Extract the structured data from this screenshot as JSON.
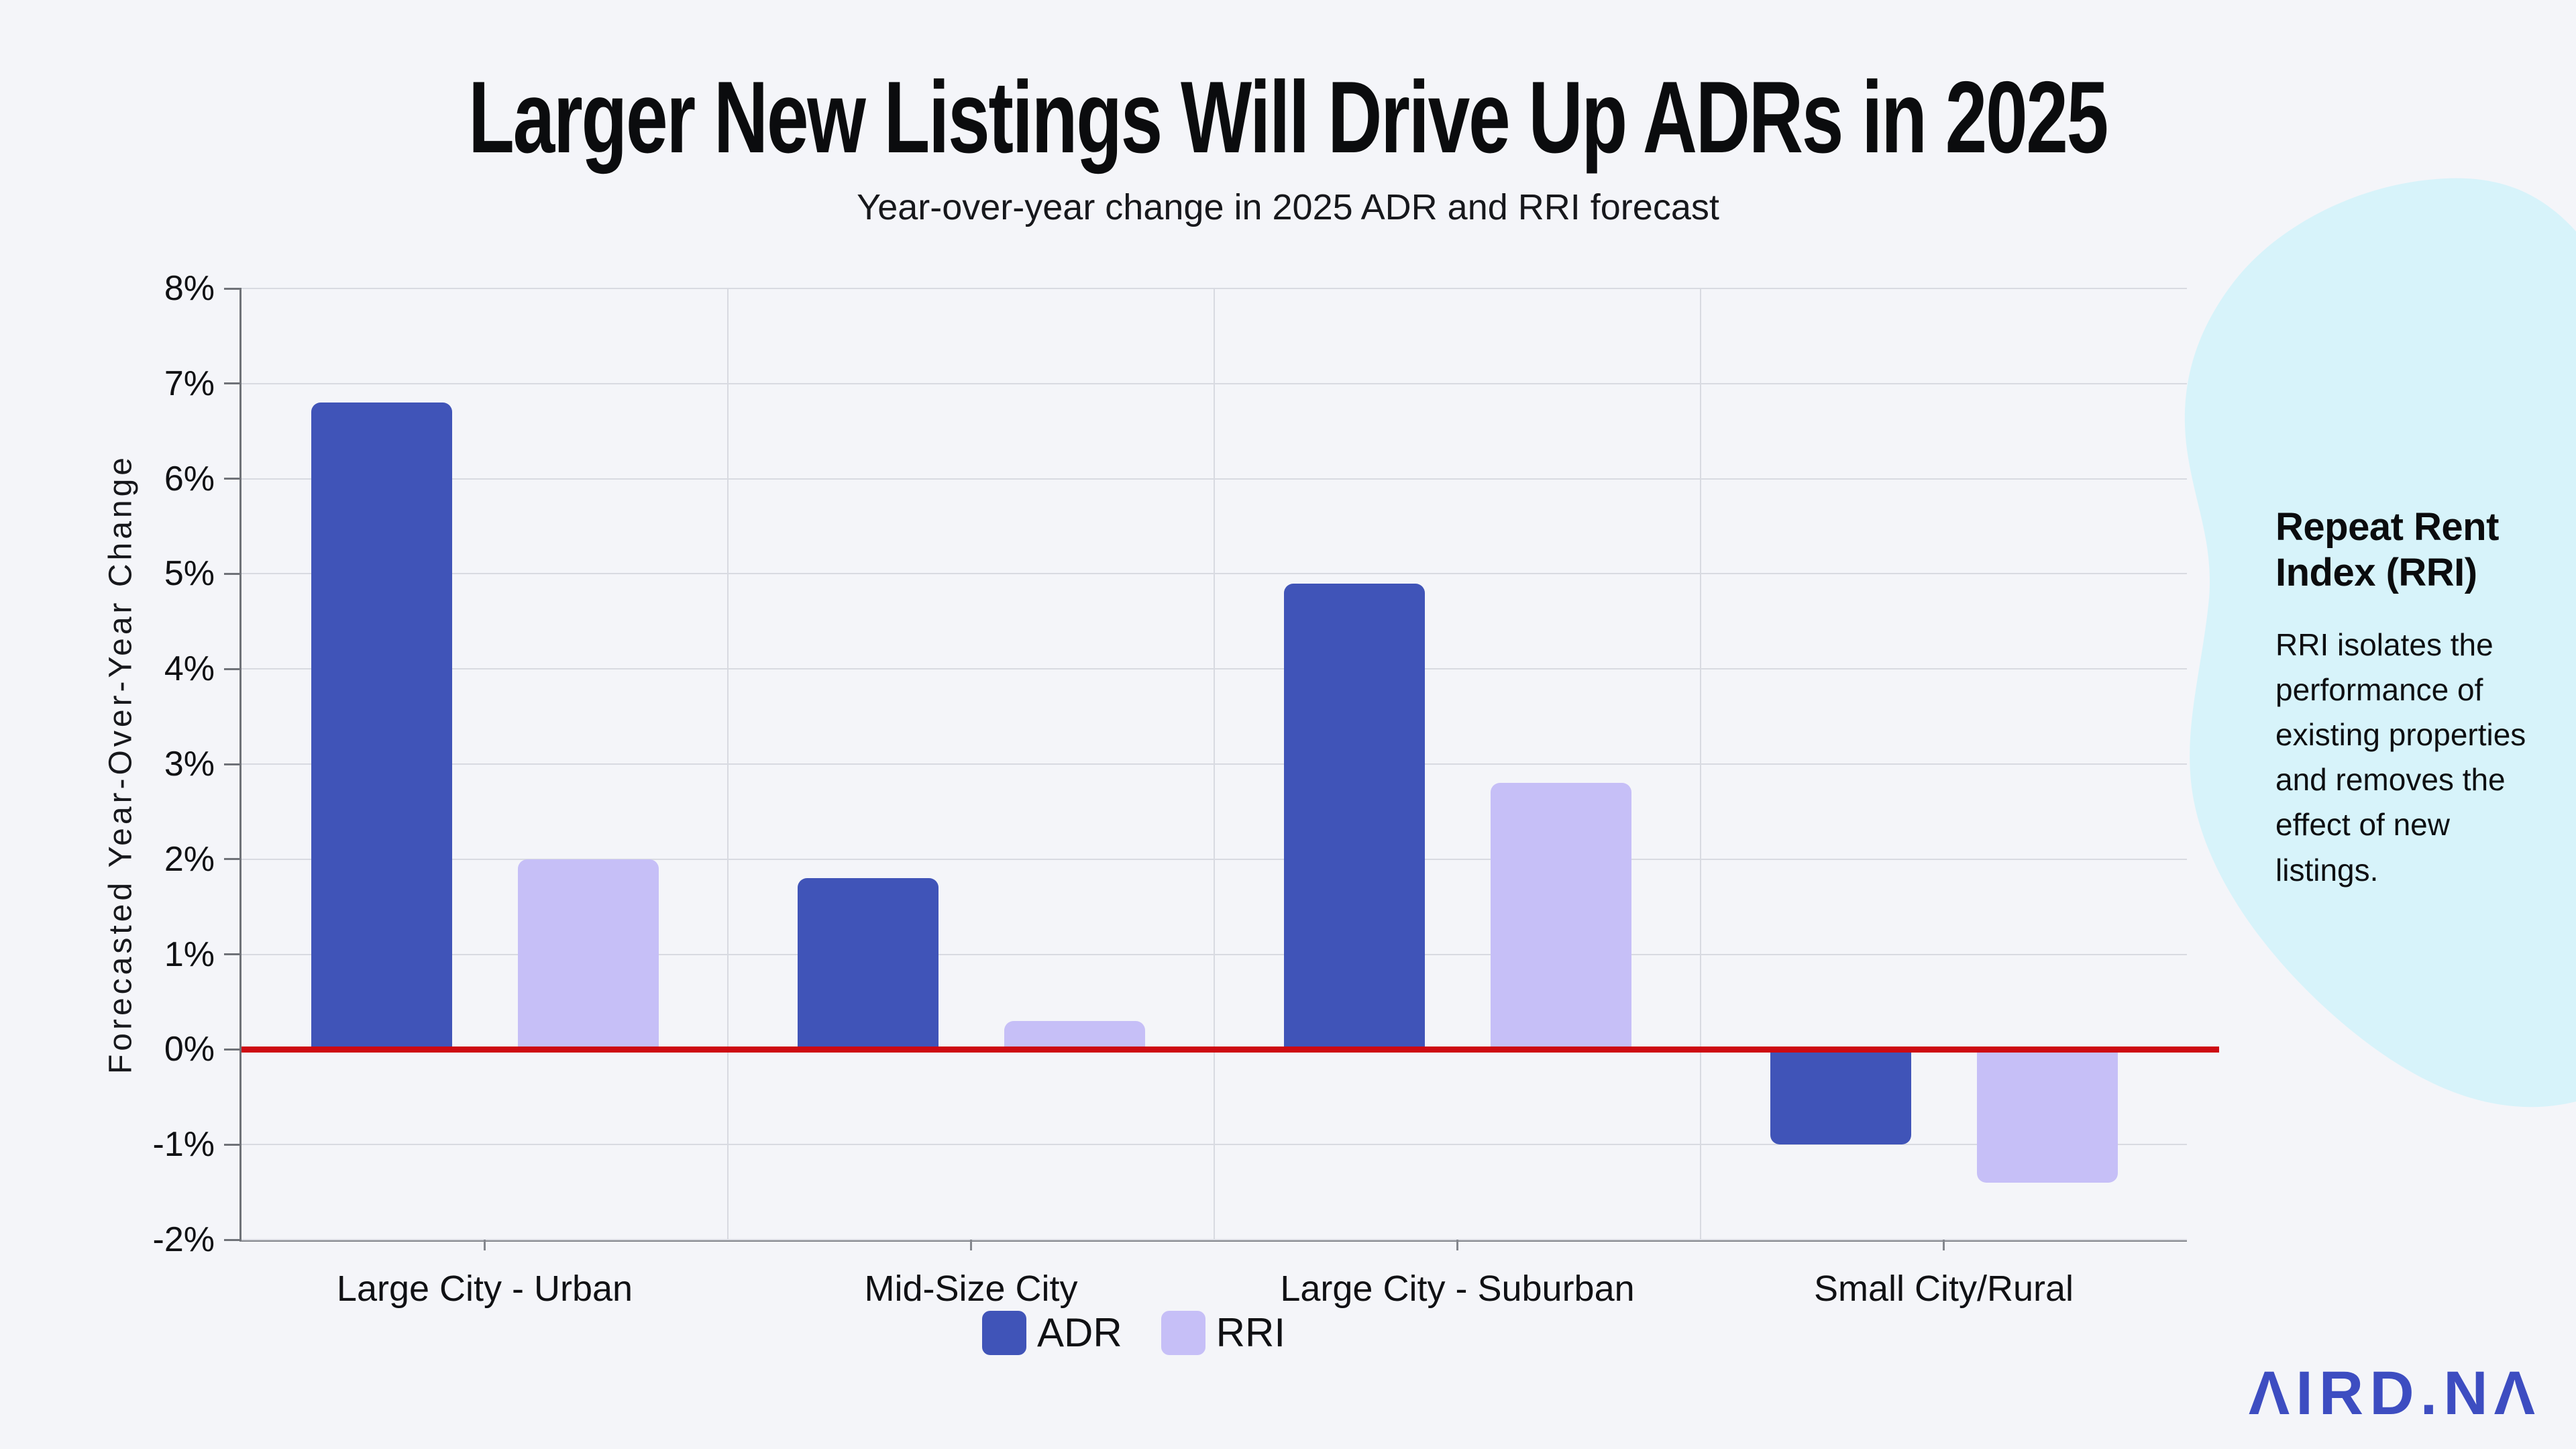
{
  "header": {
    "title": "Larger New Listings Will Drive Up ADRs in 2025",
    "subtitle": "Year-over-year change in 2025 ADR and RRI forecast"
  },
  "chart_data": {
    "type": "bar",
    "title": "Larger New Listings Will Drive Up ADRs in 2025",
    "subtitle": "Year-over-year change in 2025 ADR and RRI forecast",
    "categories": [
      "Large City - Urban",
      "Mid-Size City",
      "Large City - Suburban",
      "Small City/Rural"
    ],
    "series": [
      {
        "name": "ADR",
        "color": "#4054b8",
        "values": [
          6.8,
          1.8,
          4.9,
          -1.0
        ]
      },
      {
        "name": "RRI",
        "color": "#c6bff7",
        "values": [
          2.0,
          0.3,
          2.8,
          -1.4
        ]
      }
    ],
    "xlabel": "",
    "ylabel": "Forecasted Year-Over-Year Change",
    "ylim": [
      -2,
      8
    ],
    "ytick_step": 1,
    "ytick_labels": [
      "8%",
      "7%",
      "6%",
      "5%",
      "4%",
      "3%",
      "2%",
      "1%",
      "0%",
      "-1%",
      "-2%"
    ],
    "grid": true,
    "legend_position": "bottom",
    "zero_line": {
      "value": 0,
      "color": "#cd0a12"
    }
  },
  "side_panel": {
    "heading": "Repeat Rent Index (RRI)",
    "body": "RRI isolates the performance of existing properties and removes the effect of new listings.",
    "background": "#d7f3fa"
  },
  "logo": {
    "text": "ΛIRD.NΛ",
    "color": "#3d4dc1"
  },
  "colors": {
    "background": "#f4f5f9",
    "gridline": "#d8dae1",
    "axis": "#6f7278",
    "zero_line": "#cd0a12",
    "text": "#101114"
  }
}
